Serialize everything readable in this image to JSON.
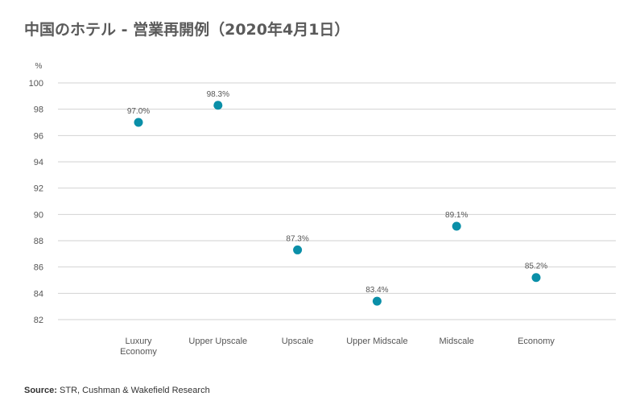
{
  "title": "中国のホテル - 営業再開例（2020年4月1日）",
  "source": {
    "label": "Source:",
    "text": " STR, Cushman & Wakefield Research"
  },
  "chart_data": {
    "type": "scatter",
    "ylabel": "%",
    "ylim": [
      82,
      100
    ],
    "yticks": [
      100,
      98,
      96,
      94,
      92,
      90,
      88,
      86,
      84,
      82
    ],
    "grid": true,
    "categories": [
      [
        "Luxury",
        "Economy"
      ],
      [
        "Upper Upscale"
      ],
      [
        "Upscale"
      ],
      [
        "Upper Midscale"
      ],
      [
        "Midscale"
      ],
      [
        "Economy"
      ]
    ],
    "values": [
      97.0,
      98.3,
      87.3,
      83.4,
      89.1,
      85.2
    ],
    "data_labels": [
      "97.0%",
      "98.3%",
      "87.3%",
      "83.4%",
      "89.1%",
      "85.2%"
    ],
    "point_color": "#0a8fa8"
  }
}
